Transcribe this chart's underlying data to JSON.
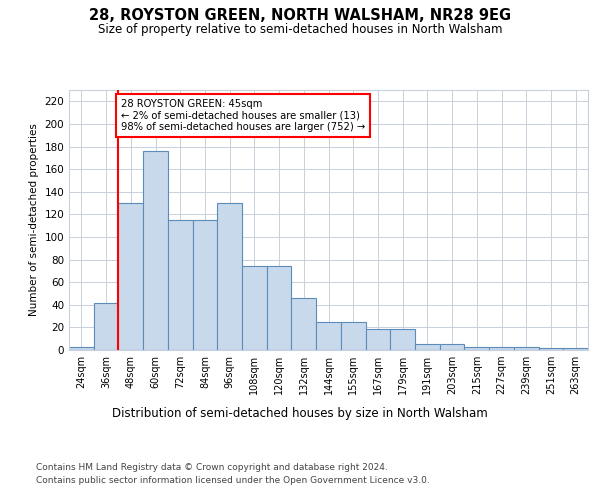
{
  "title": "28, ROYSTON GREEN, NORTH WALSHAM, NR28 9EG",
  "subtitle": "Size of property relative to semi-detached houses in North Walsham",
  "xlabel": "Distribution of semi-detached houses by size in North Walsham",
  "ylabel": "Number of semi-detached properties",
  "footer1": "Contains HM Land Registry data © Crown copyright and database right 2024.",
  "footer2": "Contains public sector information licensed under the Open Government Licence v3.0.",
  "property_label": "28 ROYSTON GREEN: 45sqm",
  "pct_smaller": 2,
  "count_smaller": 13,
  "pct_larger": 98,
  "count_larger": 752,
  "bin_labels": [
    "24sqm",
    "36sqm",
    "48sqm",
    "60sqm",
    "72sqm",
    "84sqm",
    "96sqm",
    "108sqm",
    "120sqm",
    "132sqm",
    "144sqm",
    "155sqm",
    "167sqm",
    "179sqm",
    "191sqm",
    "203sqm",
    "215sqm",
    "227sqm",
    "239sqm",
    "251sqm",
    "263sqm"
  ],
  "bar_heights": [
    3,
    42,
    130,
    176,
    115,
    115,
    130,
    74,
    74,
    46,
    25,
    25,
    19,
    19,
    5,
    5,
    3,
    3,
    3,
    2,
    2
  ],
  "bar_color": "#c9d9ec",
  "bar_edge_color": "#5b8db8",
  "red_line_x": 1.5,
  "ylim": [
    0,
    230
  ],
  "yticks": [
    0,
    20,
    40,
    60,
    80,
    100,
    120,
    140,
    160,
    180,
    200,
    220
  ],
  "background_color": "#ffffff",
  "grid_color": "#c8d0dc"
}
